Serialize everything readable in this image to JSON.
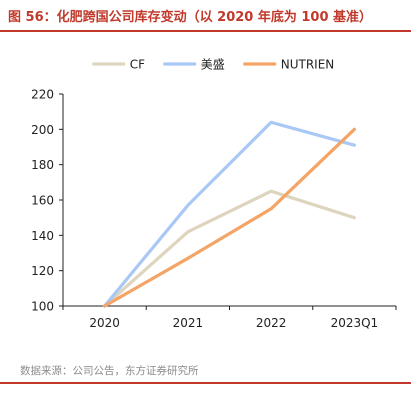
{
  "figure": {
    "title": "图 56：化肥跨国公司库存变动（以 2020 年底为 100 基准）",
    "source": "数据来源：公司公告，东方证券研究所"
  },
  "chart_data": {
    "type": "line",
    "title": "图 56：化肥跨国公司库存变动（以 2020 年底为 100 基准）",
    "xlabel": "",
    "ylabel": "",
    "categories": [
      "2020",
      "2021",
      "2022",
      "2023Q1"
    ],
    "ylim": [
      100,
      220
    ],
    "yticks": [
      100,
      120,
      140,
      160,
      180,
      200,
      220
    ],
    "grid": false,
    "legend_position": "top-center",
    "series": [
      {
        "name": "CF",
        "color": "#ddd5bd",
        "values": [
          100,
          142,
          165,
          150
        ]
      },
      {
        "name": "美盛",
        "color": "#a9c8f5",
        "values": [
          100,
          157,
          204,
          191
        ]
      },
      {
        "name": "NUTRIEN",
        "color": "#f4a466",
        "values": [
          100,
          127,
          155,
          200
        ]
      }
    ]
  }
}
